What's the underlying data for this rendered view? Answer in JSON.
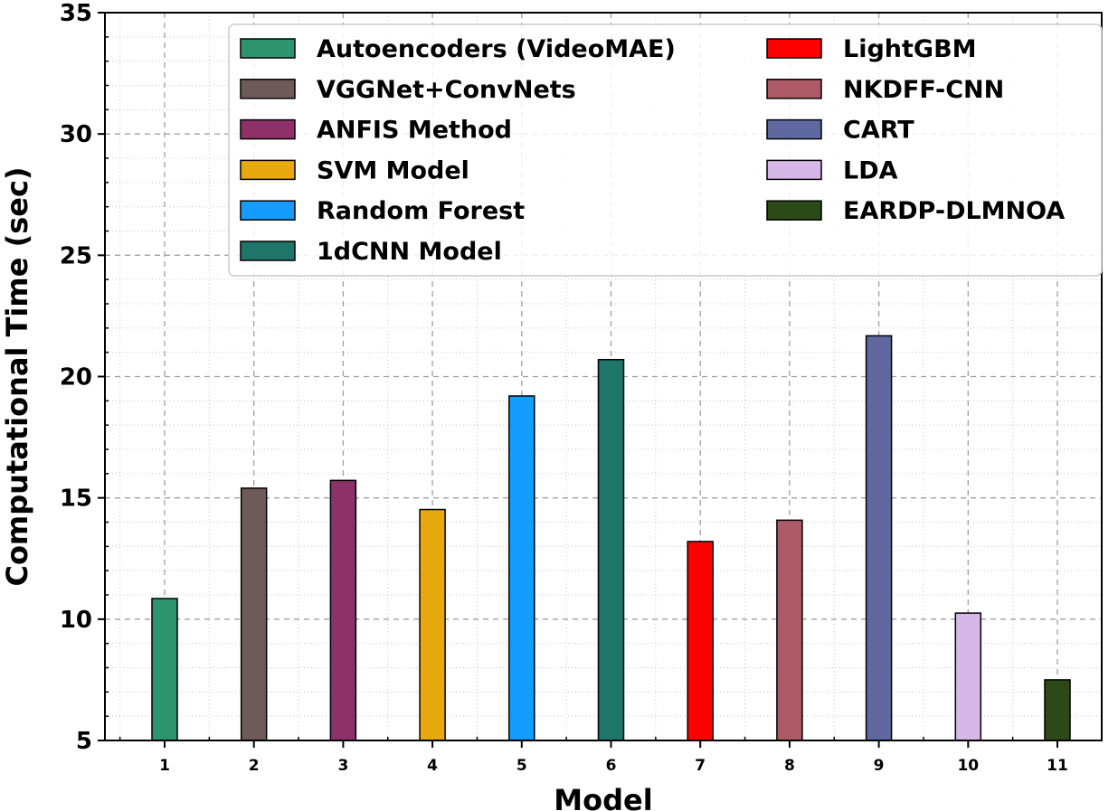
{
  "chart_data": {
    "type": "bar",
    "title": "",
    "xlabel": "Model",
    "ylabel": "Computational Time (sec)",
    "ylim": [
      5,
      35
    ],
    "yticks": [
      5,
      10,
      15,
      20,
      25,
      30,
      35
    ],
    "categories": [
      "1",
      "2",
      "3",
      "4",
      "5",
      "6",
      "7",
      "8",
      "9",
      "10",
      "11"
    ],
    "grid": true,
    "legend_position": "top",
    "series": [
      {
        "name": "Autoencoders (VideoMAE)",
        "x": "1",
        "value": 10.85,
        "color": "#2e9470"
      },
      {
        "name": "VGGNet+ConvNets",
        "x": "2",
        "value": 15.4,
        "color": "#6e5a58"
      },
      {
        "name": "ANFIS Method",
        "x": "3",
        "value": 15.72,
        "color": "#8e3168"
      },
      {
        "name": "SVM Model",
        "x": "4",
        "value": 14.52,
        "color": "#e8a90e"
      },
      {
        "name": "Random Forest",
        "x": "5",
        "value": 19.2,
        "color": "#149cff"
      },
      {
        "name": "1dCNN Model",
        "x": "6",
        "value": 20.7,
        "color": "#1f7567"
      },
      {
        "name": "LightGBM",
        "x": "7",
        "value": 13.2,
        "color": "#ff0000"
      },
      {
        "name": "NKDFF-CNN",
        "x": "8",
        "value": 14.08,
        "color": "#ac5b66"
      },
      {
        "name": "CART",
        "x": "9",
        "value": 21.68,
        "color": "#5f69a0"
      },
      {
        "name": "LDA",
        "x": "10",
        "value": 10.25,
        "color": "#d5b8e8"
      },
      {
        "name": "EARDP-DLMNOA",
        "x": "11",
        "value": 7.5,
        "color": "#2b4a18"
      }
    ]
  }
}
